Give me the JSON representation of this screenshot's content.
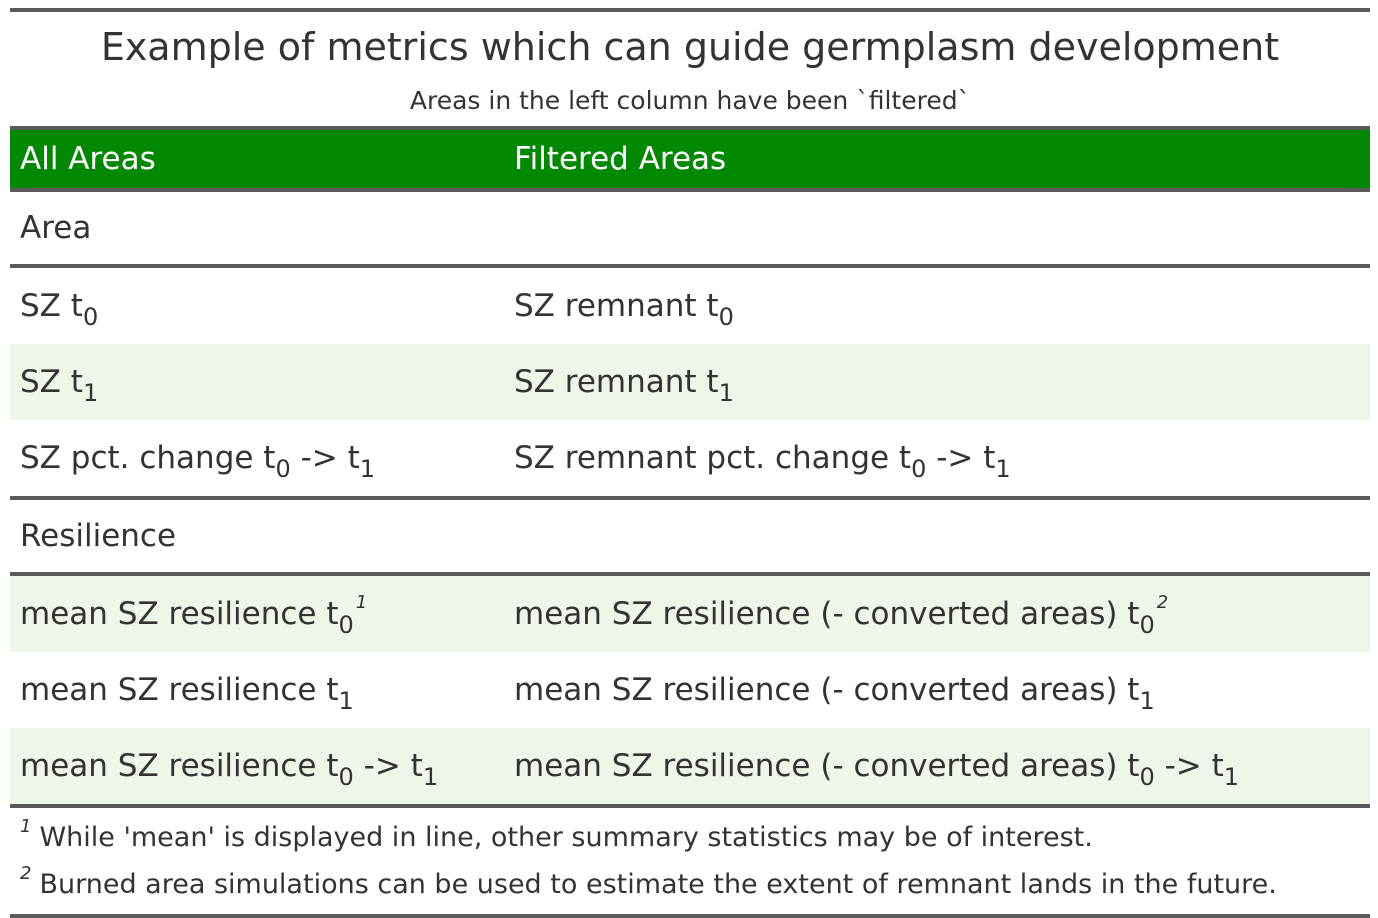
{
  "title": "Example of metrics which can guide germplasm development",
  "subtitle": "Areas in the left column have been `filtered`",
  "header": {
    "col1": "All Areas",
    "col2": "Filtered Areas"
  },
  "groups": {
    "area": {
      "label": "Area",
      "rows": [
        {
          "c1": {
            "pre": "SZ t",
            "sub": "0"
          },
          "c2": {
            "pre": "SZ remnant t",
            "sub": "0"
          }
        },
        {
          "c1": {
            "pre": "SZ t",
            "sub": "1"
          },
          "c2": {
            "pre": "SZ remnant t",
            "sub": "1"
          }
        },
        {
          "c1": {
            "pre": "SZ pct. change t",
            "sub": "0",
            "mid": " -> t",
            "sub2": "1"
          },
          "c2": {
            "pre": "SZ remnant pct. change t",
            "sub": "0",
            "mid": " -> t",
            "sub2": "1"
          }
        }
      ]
    },
    "resilience": {
      "label": "Resilience",
      "rows": [
        {
          "c1": {
            "pre": "mean SZ resilience t",
            "sub": "0",
            "fn": "1"
          },
          "c2": {
            "pre": "mean SZ resilience (- converted areas) t",
            "sub": "0",
            "fn": "2"
          }
        },
        {
          "c1": {
            "pre": "mean SZ resilience t",
            "sub": "1"
          },
          "c2": {
            "pre": "mean SZ resilience (- converted areas) t",
            "sub": "1"
          }
        },
        {
          "c1": {
            "pre": "mean SZ resilience t",
            "sub": "0",
            "mid": " -> t",
            "sub2": "1"
          },
          "c2": {
            "pre": "mean SZ resilience (- converted areas) t",
            "sub": "0",
            "mid": " -> t",
            "sub2": "1"
          }
        }
      ]
    }
  },
  "footnotes": [
    {
      "mark": "1",
      "text": "While 'mean' is displayed in line, other summary statistics may be of interest."
    },
    {
      "mark": "2",
      "text": "Burned area simulations can be used to estimate the extent of remnant lands in the future."
    }
  ]
}
